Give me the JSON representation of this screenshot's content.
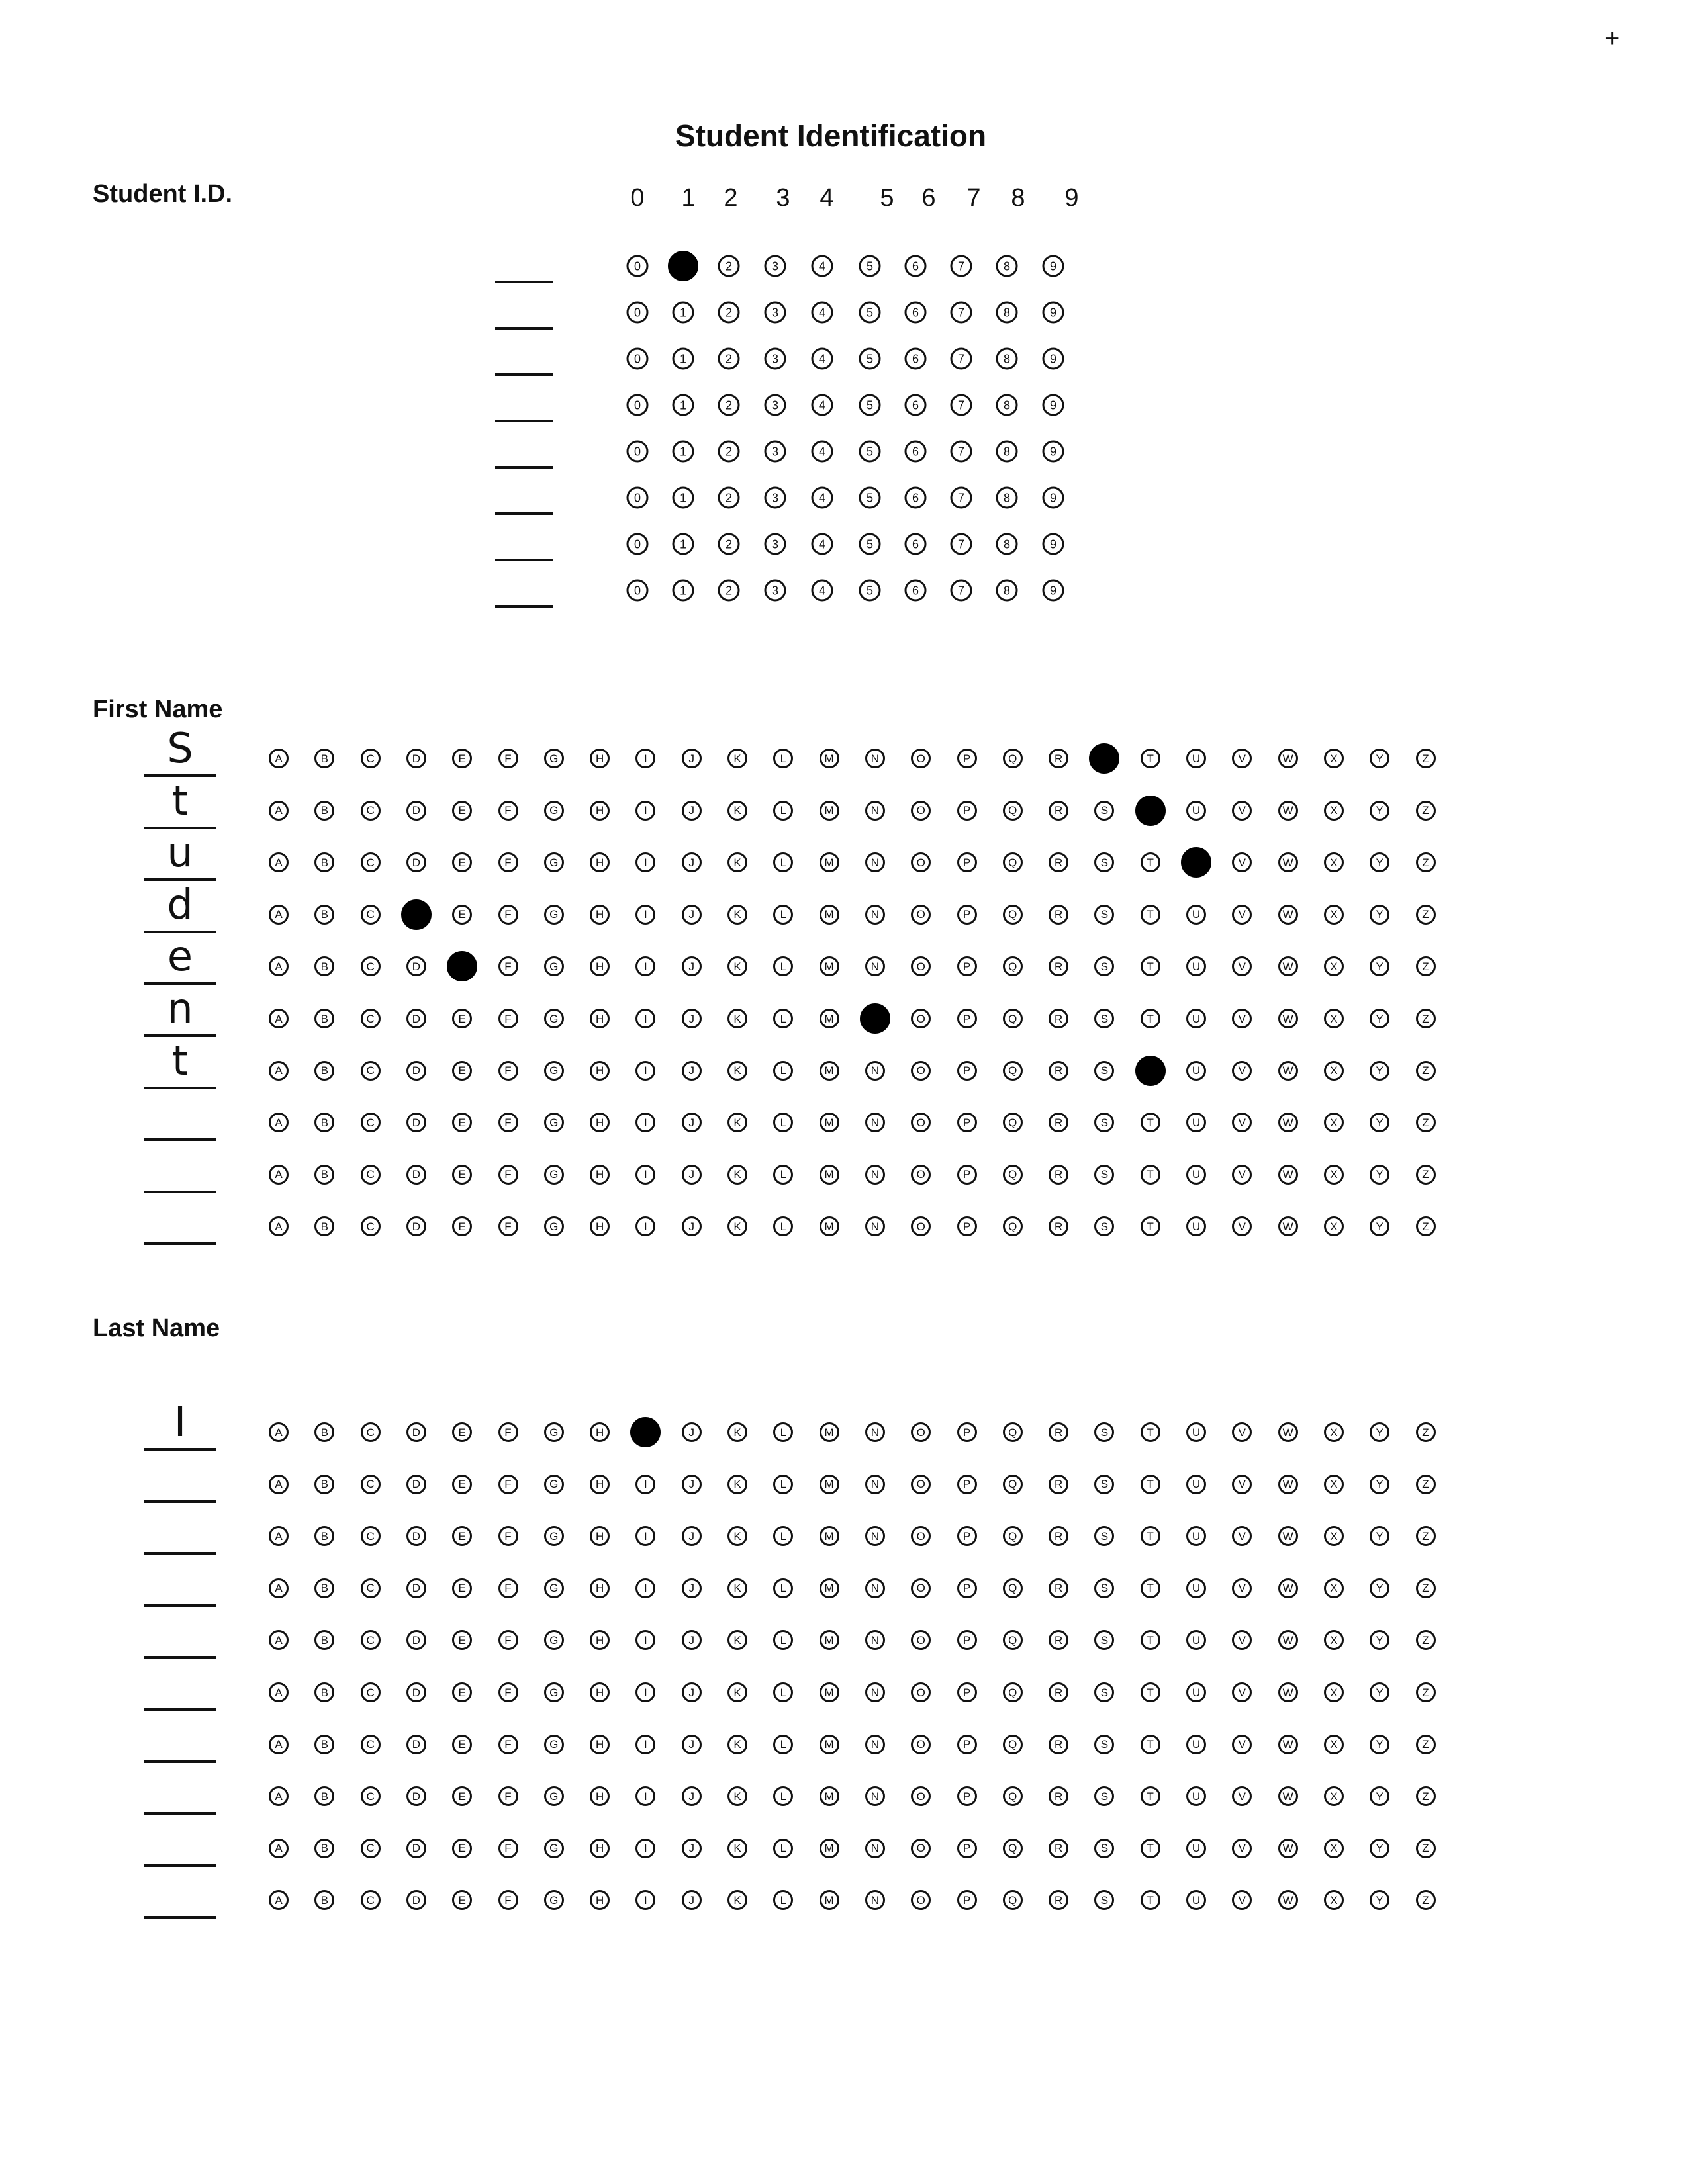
{
  "page": {
    "corner_mark": "+",
    "title": "Student Identification"
  },
  "student_id": {
    "label": "Student I.D.",
    "digits": [
      "0",
      "1",
      "2",
      "3",
      "4",
      "5",
      "6",
      "7",
      "8",
      "9"
    ],
    "rows": [
      {
        "written": "",
        "selected": "1"
      },
      {
        "written": "",
        "selected": ""
      },
      {
        "written": "",
        "selected": ""
      },
      {
        "written": "",
        "selected": ""
      },
      {
        "written": "",
        "selected": ""
      },
      {
        "written": "",
        "selected": ""
      },
      {
        "written": "",
        "selected": ""
      },
      {
        "written": "",
        "selected": ""
      }
    ]
  },
  "first_name": {
    "label": "First Name",
    "letters": [
      "A",
      "B",
      "C",
      "D",
      "E",
      "F",
      "G",
      "H",
      "I",
      "J",
      "K",
      "L",
      "M",
      "N",
      "O",
      "P",
      "Q",
      "R",
      "S",
      "T",
      "U",
      "V",
      "W",
      "X",
      "Y",
      "Z"
    ],
    "rows": [
      {
        "written": "S",
        "selected": "S"
      },
      {
        "written": "t",
        "selected": "T"
      },
      {
        "written": "u",
        "selected": "U"
      },
      {
        "written": "d",
        "selected": "D"
      },
      {
        "written": "e",
        "selected": "E"
      },
      {
        "written": "n",
        "selected": "N"
      },
      {
        "written": "t",
        "selected": "T"
      },
      {
        "written": "",
        "selected": ""
      },
      {
        "written": "",
        "selected": ""
      },
      {
        "written": "",
        "selected": ""
      }
    ]
  },
  "last_name": {
    "label": "Last Name",
    "letters": [
      "A",
      "B",
      "C",
      "D",
      "E",
      "F",
      "G",
      "H",
      "I",
      "J",
      "K",
      "L",
      "M",
      "N",
      "O",
      "P",
      "Q",
      "R",
      "S",
      "T",
      "U",
      "V",
      "W",
      "X",
      "Y",
      "Z"
    ],
    "rows": [
      {
        "written": "I",
        "selected": "I"
      },
      {
        "written": "",
        "selected": ""
      },
      {
        "written": "",
        "selected": ""
      },
      {
        "written": "",
        "selected": ""
      },
      {
        "written": "",
        "selected": ""
      },
      {
        "written": "",
        "selected": ""
      },
      {
        "written": "",
        "selected": ""
      },
      {
        "written": "",
        "selected": ""
      },
      {
        "written": "",
        "selected": ""
      },
      {
        "written": "",
        "selected": ""
      }
    ]
  }
}
